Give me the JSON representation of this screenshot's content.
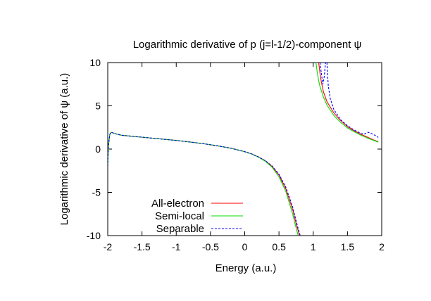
{
  "chart_data": {
    "type": "line",
    "title": "Logarithmic derivative of p (j=l-1/2)-component ψ",
    "xlabel": "Energy (a.u.)",
    "ylabel": "Logarithmic derivative of ψ (a.u.)",
    "xlim": [
      -2,
      2
    ],
    "ylim": [
      -10,
      10
    ],
    "xticks": [
      "-2",
      "-1.5",
      "-1",
      "-0.5",
      "0",
      "0.5",
      "1",
      "1.5",
      "2"
    ],
    "yticks": [
      "10",
      "5",
      "0",
      "-5",
      "-10"
    ],
    "grid": false,
    "legend_position": "bottom-left",
    "series": [
      {
        "name": "All-electron",
        "color": "#ff0000",
        "dash": "solid",
        "segments": [
          [
            [
              -2.0,
              -2.0
            ],
            [
              -1.99,
              0.4
            ],
            [
              -1.97,
              1.7
            ],
            [
              -1.95,
              1.95
            ],
            [
              -1.9,
              1.8
            ],
            [
              -1.8,
              1.6
            ],
            [
              -1.6,
              1.45
            ],
            [
              -1.4,
              1.3
            ],
            [
              -1.2,
              1.15
            ],
            [
              -1.0,
              1.0
            ],
            [
              -0.8,
              0.82
            ],
            [
              -0.6,
              0.62
            ],
            [
              -0.4,
              0.38
            ],
            [
              -0.2,
              0.1
            ],
            [
              0.0,
              -0.3
            ],
            [
              0.1,
              -0.55
            ],
            [
              0.2,
              -0.9
            ],
            [
              0.3,
              -1.35
            ],
            [
              0.4,
              -2.0
            ],
            [
              0.5,
              -3.0
            ],
            [
              0.6,
              -4.6
            ],
            [
              0.7,
              -7.0
            ],
            [
              0.75,
              -8.6
            ],
            [
              0.8,
              -10.0
            ]
          ],
          [
            [
              1.08,
              10.0
            ],
            [
              1.1,
              8.7
            ],
            [
              1.12,
              7.7
            ],
            [
              1.15,
              6.6
            ],
            [
              1.2,
              5.5
            ],
            [
              1.3,
              4.2
            ],
            [
              1.4,
              3.3
            ],
            [
              1.5,
              2.6
            ],
            [
              1.6,
              2.1
            ],
            [
              1.7,
              1.7
            ],
            [
              1.8,
              1.35
            ],
            [
              1.9,
              1.0
            ],
            [
              1.95,
              0.85
            ]
          ]
        ]
      },
      {
        "name": "Semi-local",
        "color": "#00dd00",
        "dash": "solid",
        "segments": [
          [
            [
              -2.0,
              -2.0
            ],
            [
              -1.99,
              0.4
            ],
            [
              -1.97,
              1.7
            ],
            [
              -1.95,
              1.95
            ],
            [
              -1.9,
              1.8
            ],
            [
              -1.8,
              1.6
            ],
            [
              -1.6,
              1.45
            ],
            [
              -1.4,
              1.3
            ],
            [
              -1.2,
              1.15
            ],
            [
              -1.0,
              1.0
            ],
            [
              -0.8,
              0.82
            ],
            [
              -0.6,
              0.62
            ],
            [
              -0.4,
              0.38
            ],
            [
              -0.2,
              0.1
            ],
            [
              0.0,
              -0.3
            ],
            [
              0.1,
              -0.57
            ],
            [
              0.2,
              -0.93
            ],
            [
              0.3,
              -1.4
            ],
            [
              0.4,
              -2.1
            ],
            [
              0.5,
              -3.2
            ],
            [
              0.6,
              -4.9
            ],
            [
              0.7,
              -7.5
            ],
            [
              0.74,
              -8.8
            ],
            [
              0.78,
              -10.0
            ]
          ],
          [
            [
              1.04,
              10.0
            ],
            [
              1.06,
              8.8
            ],
            [
              1.08,
              7.9
            ],
            [
              1.1,
              7.2
            ],
            [
              1.15,
              6.0
            ],
            [
              1.2,
              5.1
            ],
            [
              1.3,
              3.9
            ],
            [
              1.4,
              3.1
            ],
            [
              1.5,
              2.45
            ],
            [
              1.6,
              2.0
            ],
            [
              1.7,
              1.6
            ],
            [
              1.8,
              1.25
            ],
            [
              1.9,
              0.95
            ],
            [
              1.95,
              0.8
            ]
          ]
        ]
      },
      {
        "name": "Separable",
        "color": "#0000ff",
        "dash": "dash",
        "segments": [
          [
            [
              -2.0,
              -2.0
            ],
            [
              -1.99,
              0.4
            ],
            [
              -1.97,
              1.7
            ],
            [
              -1.95,
              1.95
            ],
            [
              -1.9,
              1.8
            ],
            [
              -1.8,
              1.6
            ],
            [
              -1.6,
              1.45
            ],
            [
              -1.4,
              1.3
            ],
            [
              -1.2,
              1.15
            ],
            [
              -1.0,
              1.0
            ],
            [
              -0.8,
              0.82
            ],
            [
              -0.6,
              0.62
            ],
            [
              -0.4,
              0.38
            ],
            [
              -0.2,
              0.1
            ],
            [
              0.0,
              -0.3
            ],
            [
              0.1,
              -0.55
            ],
            [
              0.2,
              -0.9
            ],
            [
              0.3,
              -1.33
            ],
            [
              0.4,
              -1.95
            ],
            [
              0.5,
              -2.9
            ],
            [
              0.6,
              -4.4
            ],
            [
              0.7,
              -6.7
            ],
            [
              0.76,
              -8.6
            ],
            [
              0.81,
              -10.0
            ]
          ],
          [
            [
              1.1,
              10.0
            ],
            [
              1.12,
              8.7
            ],
            [
              1.14,
              7.5
            ],
            [
              1.16,
              8.3
            ],
            [
              1.18,
              10.0
            ]
          ],
          [
            [
              1.2,
              10.0
            ],
            [
              1.22,
              7.3
            ],
            [
              1.25,
              5.8
            ],
            [
              1.3,
              4.6
            ],
            [
              1.4,
              3.4
            ],
            [
              1.5,
              2.7
            ],
            [
              1.6,
              2.2
            ],
            [
              1.7,
              1.8
            ],
            [
              1.75,
              1.75
            ],
            [
              1.8,
              1.95
            ],
            [
              1.85,
              1.8
            ],
            [
              1.9,
              1.6
            ],
            [
              1.95,
              1.35
            ]
          ]
        ]
      }
    ]
  }
}
